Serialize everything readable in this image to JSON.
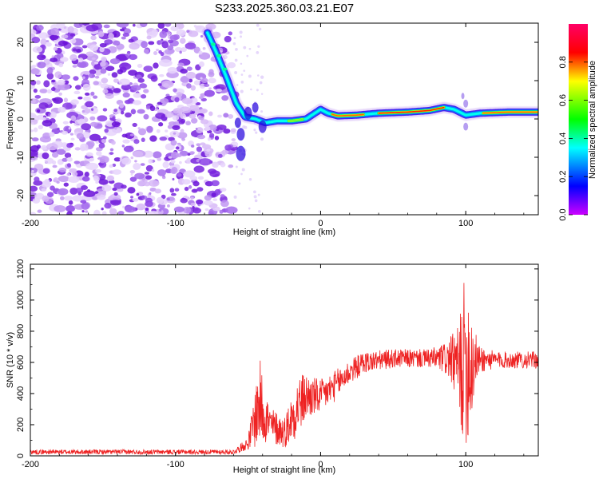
{
  "figure": {
    "title": "S233.2025.360.03.21.E07"
  },
  "chart_data": [
    {
      "type": "heatmap",
      "panel": "spectrogram",
      "xlabel": "Height of straight line (km)",
      "ylabel": "Frequency (Hz)",
      "xlim": [
        -200,
        150
      ],
      "ylim": [
        -25,
        25
      ],
      "xticks": [
        -200,
        -100,
        0,
        100
      ],
      "yticks": [
        -20,
        -10,
        0,
        10,
        20
      ],
      "xtick_labels": [
        "-200",
        "-100",
        "0",
        "100"
      ],
      "ytick_labels": [
        "-20",
        "-10",
        "0",
        "10",
        "20"
      ],
      "colorbar": {
        "label": "Normalized spectral amplitude",
        "range": [
          0,
          1
        ],
        "ticks": [
          0.0,
          0.2,
          0.4,
          0.6,
          0.8
        ],
        "tick_labels": [
          "0.0",
          "0.2",
          "0.4",
          "0.6",
          "0.8"
        ],
        "colormap": [
          "#cc00ff",
          "#0000ff",
          "#00ffff",
          "#00ff00",
          "#ffff00",
          "#ff0000",
          "#ff0066"
        ]
      },
      "features": {
        "noise_region_x": [
          -200,
          -60
        ],
        "noise_color": "#8822ee",
        "tone_track": [
          {
            "x": -78,
            "f": 22.5
          },
          {
            "x": -72,
            "f": 17.5
          },
          {
            "x": -65,
            "f": 11
          },
          {
            "x": -58,
            "f": 4
          },
          {
            "x": -52,
            "f": 0.5
          },
          {
            "x": -45,
            "f": 0
          },
          {
            "x": -38,
            "f": -1
          },
          {
            "x": -30,
            "f": -0.5
          },
          {
            "x": -20,
            "f": -0.5
          },
          {
            "x": -10,
            "f": 0
          },
          {
            "x": 0,
            "f": 2.5
          },
          {
            "x": 5,
            "f": 1.5
          },
          {
            "x": 12,
            "f": 0.8
          },
          {
            "x": 25,
            "f": 1
          },
          {
            "x": 40,
            "f": 1.5
          },
          {
            "x": 60,
            "f": 1.8
          },
          {
            "x": 75,
            "f": 2.2
          },
          {
            "x": 85,
            "f": 3
          },
          {
            "x": 92,
            "f": 2.5
          },
          {
            "x": 100,
            "f": 1
          },
          {
            "x": 110,
            "f": 1.5
          },
          {
            "x": 130,
            "f": 1.8
          },
          {
            "x": 150,
            "f": 1.8
          }
        ],
        "hot_segments": [
          {
            "x": [
              -22,
              -12
            ],
            "f": -0.5,
            "level": 0.6
          },
          {
            "x": [
              8,
              30
            ],
            "f": 1,
            "level": 0.9
          },
          {
            "x": [
              40,
              85
            ],
            "f": 1.7,
            "level": 1.0
          },
          {
            "x": [
              112,
              150
            ],
            "f": 1.8,
            "level": 0.95
          }
        ]
      }
    },
    {
      "type": "line",
      "panel": "snr",
      "xlabel": "Height of straight line (km)",
      "ylabel": "SNR (10 * v/v)",
      "xlim": [
        -200,
        150
      ],
      "ylim": [
        0,
        1230
      ],
      "xticks": [
        -200,
        -100,
        0,
        100
      ],
      "yticks": [
        0,
        200,
        400,
        600,
        800,
        1000,
        1200
      ],
      "xtick_labels": [
        "-200",
        "-100",
        "0",
        "100"
      ],
      "ytick_labels": [
        "0",
        "200",
        "400",
        "600",
        "800",
        "1000",
        "1200"
      ],
      "series": [
        {
          "name": "SNR",
          "color": "#ee2222",
          "envelope": [
            {
              "x": -200,
              "mean": 25,
              "amp": 15
            },
            {
              "x": -60,
              "mean": 25,
              "amp": 15
            },
            {
              "x": -50,
              "mean": 80,
              "amp": 40
            },
            {
              "x": -45,
              "mean": 250,
              "amp": 200
            },
            {
              "x": -42,
              "mean": 350,
              "amp": 280
            },
            {
              "x": -35,
              "mean": 200,
              "amp": 120
            },
            {
              "x": -25,
              "mean": 150,
              "amp": 100
            },
            {
              "x": -15,
              "mean": 330,
              "amp": 200
            },
            {
              "x": -10,
              "mean": 380,
              "amp": 150
            },
            {
              "x": 0,
              "mean": 380,
              "amp": 110
            },
            {
              "x": 10,
              "mean": 450,
              "amp": 100
            },
            {
              "x": 20,
              "mean": 540,
              "amp": 80
            },
            {
              "x": 30,
              "mean": 600,
              "amp": 70
            },
            {
              "x": 50,
              "mean": 625,
              "amp": 60
            },
            {
              "x": 75,
              "mean": 625,
              "amp": 60
            },
            {
              "x": 85,
              "mean": 625,
              "amp": 100
            },
            {
              "x": 90,
              "mean": 620,
              "amp": 150
            },
            {
              "x": 95,
              "mean": 560,
              "amp": 280
            },
            {
              "x": 98,
              "mean": 600,
              "amp": 500
            },
            {
              "x": 101,
              "mean": 620,
              "amp": 550
            },
            {
              "x": 104,
              "mean": 600,
              "amp": 420
            },
            {
              "x": 108,
              "mean": 620,
              "amp": 100
            },
            {
              "x": 120,
              "mean": 615,
              "amp": 55
            },
            {
              "x": 150,
              "mean": 615,
              "amp": 55
            }
          ]
        }
      ]
    }
  ]
}
